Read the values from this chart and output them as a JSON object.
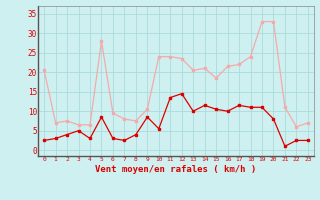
{
  "x": [
    0,
    1,
    2,
    3,
    4,
    5,
    6,
    7,
    8,
    9,
    10,
    11,
    12,
    13,
    14,
    15,
    16,
    17,
    18,
    19,
    20,
    21,
    22,
    23
  ],
  "wind_mean": [
    2.5,
    3,
    4,
    5,
    3,
    8.5,
    3,
    2.5,
    4,
    8.5,
    5.5,
    13.5,
    14.5,
    10,
    11.5,
    10.5,
    10,
    11.5,
    11,
    11,
    8,
    1,
    2.5,
    2.5
  ],
  "wind_gust": [
    20.5,
    7,
    7.5,
    6.5,
    6.5,
    28,
    9.5,
    8,
    7.5,
    10.5,
    24,
    24,
    23.5,
    20.5,
    21,
    18.5,
    21.5,
    22,
    24,
    33,
    33,
    11,
    6,
    7
  ],
  "mean_color": "#dd0000",
  "gust_color": "#f4aaaa",
  "bg_color": "#cff0f0",
  "grid_color": "#aadada",
  "xlabel": "Vent moyen/en rafales ( km/h )",
  "xlabel_color": "#dd0000",
  "ytick_labels": [
    "0",
    "5",
    "10",
    "15",
    "20",
    "25",
    "30",
    "35"
  ],
  "ytick_values": [
    0,
    5,
    10,
    15,
    20,
    25,
    30,
    35
  ],
  "ylim": [
    -1.5,
    37
  ],
  "xlim": [
    -0.5,
    23.5
  ]
}
